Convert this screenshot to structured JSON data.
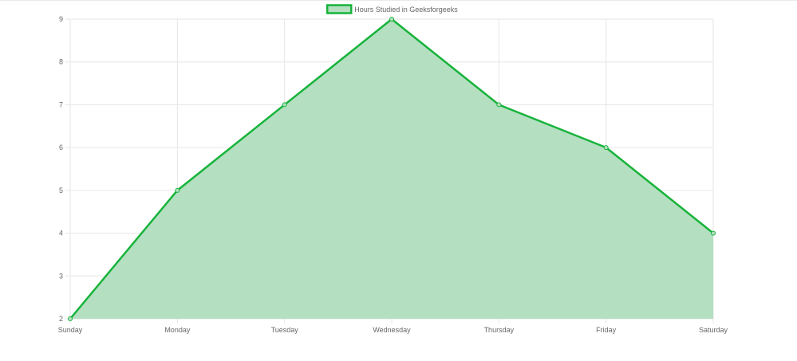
{
  "chart_data": {
    "type": "area",
    "title": "",
    "xlabel": "",
    "ylabel": "",
    "categories": [
      "Sunday",
      "Monday",
      "Tuesday",
      "Wednesday",
      "Thursday",
      "Friday",
      "Saturday"
    ],
    "series": [
      {
        "name": "Hours Studied in Geeksforgeeks",
        "values": [
          2,
          5,
          7,
          9,
          7,
          6,
          4
        ]
      }
    ],
    "ylim": [
      2,
      9
    ],
    "y_ticks": [
      "2",
      "3",
      "4",
      "5",
      "6",
      "7",
      "8",
      "9"
    ],
    "grid": true,
    "legend": "top-center",
    "colors": {
      "line": "#17b33b",
      "fill": "#b4e0c1",
      "grid": "#e6e6e6",
      "text": "#666666"
    }
  }
}
